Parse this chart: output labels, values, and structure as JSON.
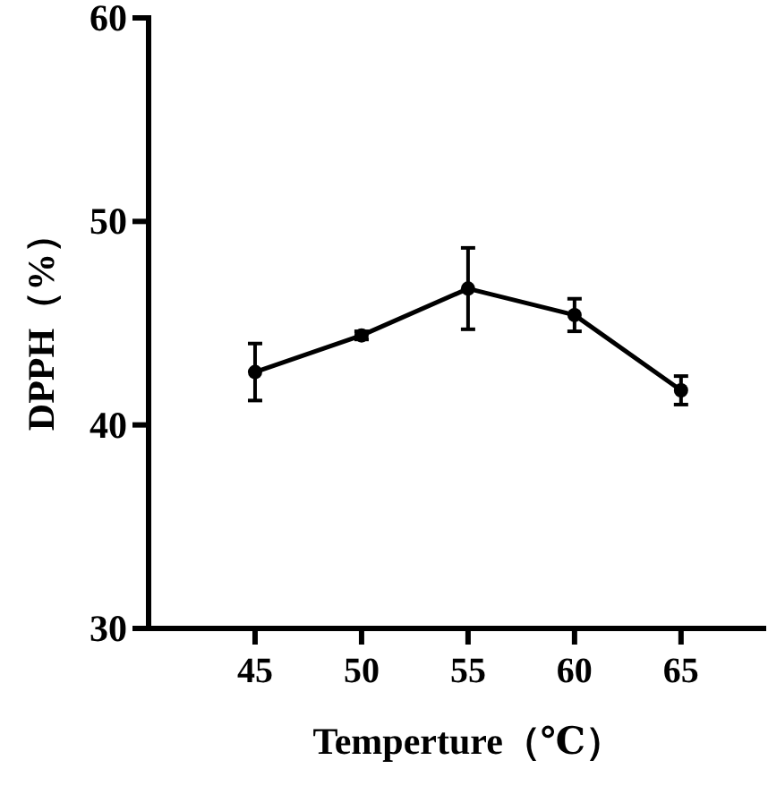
{
  "chart_data": {
    "type": "line",
    "xlabel": "Temperture（℃）",
    "ylabel": "DPPH（%）",
    "x": [
      45,
      50,
      55,
      60,
      65
    ],
    "series": [
      {
        "color": "#000000",
        "values": [
          42.6,
          44.4,
          46.7,
          45.4,
          41.7
        ],
        "errors": [
          1.4,
          0.2,
          2.0,
          0.8,
          0.7
        ]
      }
    ],
    "xlim": [
      40,
      69
    ],
    "xticks": [
      45,
      50,
      55,
      60,
      65
    ],
    "ylim": [
      30,
      60
    ],
    "yticks": [
      30,
      40,
      50,
      60
    ],
    "marker": "circle",
    "line_style": "solid",
    "grid": false
  }
}
